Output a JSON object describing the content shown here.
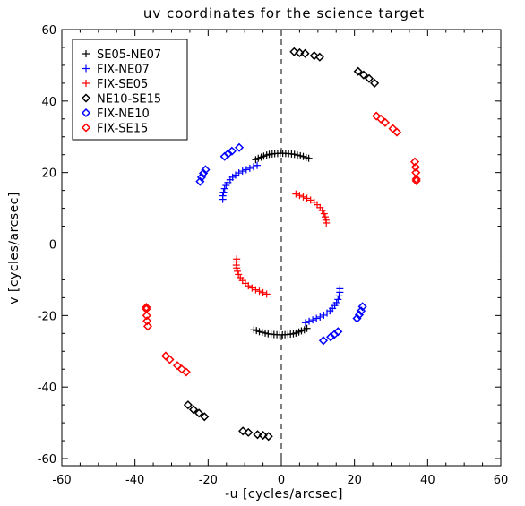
{
  "chart_data": {
    "type": "scatter",
    "title": "uv coordinates for the science target",
    "xlabel": "-u [cycles/arcsec]",
    "ylabel": "v [cycles/arcsec]",
    "xlim": [
      -60,
      60
    ],
    "ylim": [
      -62,
      60
    ],
    "xticks": [
      -60,
      -40,
      -20,
      0,
      20,
      40,
      60
    ],
    "yticks": [
      -60,
      -40,
      -20,
      0,
      20,
      40,
      60
    ],
    "xtick_labels": [
      "-60",
      "-40",
      "-20",
      "0",
      "20",
      "40",
      "60"
    ],
    "ytick_labels": [
      "-60",
      "-40",
      "-20",
      "0",
      "20",
      "40",
      "60"
    ],
    "zero_lines": "dashed",
    "legend_position": "top-left",
    "series": [
      {
        "name": "SE05-NE07",
        "marker": "plus",
        "color": "#000000",
        "points": [
          [
            -7,
            23.6
          ],
          [
            -6.3,
            24
          ],
          [
            -5.5,
            24.3
          ],
          [
            -4.8,
            24.6
          ],
          [
            -4,
            24.9
          ],
          [
            -3.3,
            25.1
          ],
          [
            -2.5,
            25.2
          ],
          [
            -1.8,
            25.3
          ],
          [
            -1,
            25.35
          ],
          [
            -0.3,
            25.4
          ],
          [
            0.4,
            25.4
          ],
          [
            1.2,
            25.35
          ],
          [
            2,
            25.3
          ],
          [
            2.8,
            25.2
          ],
          [
            3.6,
            25.1
          ],
          [
            4.4,
            24.9
          ],
          [
            5.2,
            24.7
          ],
          [
            6,
            24.5
          ],
          [
            6.8,
            24.2
          ],
          [
            7.5,
            24
          ],
          [
            7,
            -23.6
          ],
          [
            6.3,
            -24
          ],
          [
            5.5,
            -24.3
          ],
          [
            4.8,
            -24.6
          ],
          [
            4,
            -24.9
          ],
          [
            3.3,
            -25.1
          ],
          [
            2.5,
            -25.2
          ],
          [
            1.8,
            -25.3
          ],
          [
            1,
            -25.35
          ],
          [
            0.3,
            -25.4
          ],
          [
            -0.4,
            -25.4
          ],
          [
            -1.2,
            -25.35
          ],
          [
            -2,
            -25.3
          ],
          [
            -2.8,
            -25.2
          ],
          [
            -3.6,
            -25.1
          ],
          [
            -4.4,
            -24.9
          ],
          [
            -5.2,
            -24.7
          ],
          [
            -6,
            -24.5
          ],
          [
            -6.8,
            -24.2
          ],
          [
            -7.5,
            -24
          ]
        ]
      },
      {
        "name": "FIX-NE07",
        "marker": "plus",
        "color": "#0000ff",
        "points": [
          [
            -16,
            12.5
          ],
          [
            -16,
            13.5
          ],
          [
            -15.8,
            14.5
          ],
          [
            -15.5,
            15.5
          ],
          [
            -15.1,
            16.4
          ],
          [
            -14.6,
            17.2
          ],
          [
            -14,
            18
          ],
          [
            -13.3,
            18.7
          ],
          [
            -12.5,
            19.3
          ],
          [
            -11.6,
            19.9
          ],
          [
            -10.6,
            20.4
          ],
          [
            -9.6,
            20.8
          ],
          [
            -8.6,
            21.2
          ],
          [
            -7.6,
            21.6
          ],
          [
            -6.6,
            22
          ],
          [
            16,
            -12.5
          ],
          [
            16,
            -13.5
          ],
          [
            15.8,
            -14.5
          ],
          [
            15.5,
            -15.5
          ],
          [
            15.1,
            -16.4
          ],
          [
            14.6,
            -17.2
          ],
          [
            14,
            -18
          ],
          [
            13.3,
            -18.7
          ],
          [
            12.5,
            -19.3
          ],
          [
            11.6,
            -19.9
          ],
          [
            10.6,
            -20.4
          ],
          [
            9.6,
            -20.8
          ],
          [
            8.6,
            -21.2
          ],
          [
            7.6,
            -21.6
          ],
          [
            6.6,
            -22
          ]
        ]
      },
      {
        "name": "FIX-SE05",
        "marker": "plus",
        "color": "#ff0000",
        "points": [
          [
            4,
            14
          ],
          [
            5,
            13.6
          ],
          [
            6,
            13.2
          ],
          [
            7,
            12.8
          ],
          [
            8,
            12.3
          ],
          [
            9,
            11.7
          ],
          [
            9.8,
            11
          ],
          [
            10.6,
            10.2
          ],
          [
            11.2,
            9.4
          ],
          [
            11.7,
            8.5
          ],
          [
            12,
            7.6
          ],
          [
            12.2,
            6.7
          ],
          [
            12.3,
            5.9
          ],
          [
            -4,
            -14
          ],
          [
            -5,
            -13.6
          ],
          [
            -6,
            -13.2
          ],
          [
            -7,
            -12.8
          ],
          [
            -8,
            -12.3
          ],
          [
            -9,
            -11.7
          ],
          [
            -9.8,
            -11
          ],
          [
            -10.6,
            -10.2
          ],
          [
            -11.2,
            -9.4
          ],
          [
            -11.7,
            -8.5
          ],
          [
            -12,
            -7.6
          ],
          [
            -12.2,
            -6.7
          ],
          [
            -12.3,
            -5.9
          ],
          [
            -12.3,
            -5
          ],
          [
            -12.2,
            -4.2
          ]
        ]
      },
      {
        "name": "NE10-SE15",
        "marker": "diamond",
        "color": "#000000",
        "points": [
          [
            3.5,
            53.8
          ],
          [
            5,
            53.5
          ],
          [
            6.5,
            53.3
          ],
          [
            9,
            52.7
          ],
          [
            10.5,
            52.3
          ],
          [
            21,
            48.3
          ],
          [
            22.5,
            47.3
          ],
          [
            24,
            46.3
          ],
          [
            25.5,
            45
          ],
          [
            -3.5,
            -53.8
          ],
          [
            -5,
            -53.5
          ],
          [
            -6.5,
            -53.3
          ],
          [
            -9,
            -52.7
          ],
          [
            -10.5,
            -52.3
          ],
          [
            -21,
            -48.3
          ],
          [
            -22.5,
            -47.3
          ],
          [
            -24,
            -46.3
          ],
          [
            -25.5,
            -45
          ]
        ]
      },
      {
        "name": "FIX-NE10",
        "marker": "diamond",
        "color": "#0000ff",
        "points": [
          [
            -22.2,
            17.5
          ],
          [
            -21.8,
            18.7
          ],
          [
            -21.3,
            19.8
          ],
          [
            -20.7,
            20.8
          ],
          [
            -15.5,
            24.5
          ],
          [
            -14.5,
            25.3
          ],
          [
            -13.5,
            26
          ],
          [
            -11.5,
            27
          ],
          [
            22.2,
            -17.5
          ],
          [
            21.8,
            -18.7
          ],
          [
            21.3,
            -19.8
          ],
          [
            20.7,
            -20.8
          ],
          [
            15.5,
            -24.5
          ],
          [
            14.5,
            -25.3
          ],
          [
            13.5,
            -26
          ],
          [
            11.5,
            -27
          ]
        ]
      },
      {
        "name": "FIX-SE15",
        "marker": "diamond",
        "color": "#ff0000",
        "points": [
          [
            26,
            35.8
          ],
          [
            27.2,
            35
          ],
          [
            28.4,
            34
          ],
          [
            30.5,
            32.3
          ],
          [
            31.6,
            31.3
          ],
          [
            36.5,
            23
          ],
          [
            36.7,
            21.5
          ],
          [
            36.8,
            20
          ],
          [
            36.9,
            18.2
          ],
          [
            36.9,
            17.7
          ],
          [
            -26,
            -35.8
          ],
          [
            -27.2,
            -35
          ],
          [
            -28.4,
            -34
          ],
          [
            -30.5,
            -32.3
          ],
          [
            -31.6,
            -31.3
          ],
          [
            -36.5,
            -23
          ],
          [
            -36.7,
            -21.5
          ],
          [
            -36.8,
            -20
          ],
          [
            -36.9,
            -18.2
          ],
          [
            -36.9,
            -17.7
          ]
        ]
      }
    ]
  }
}
